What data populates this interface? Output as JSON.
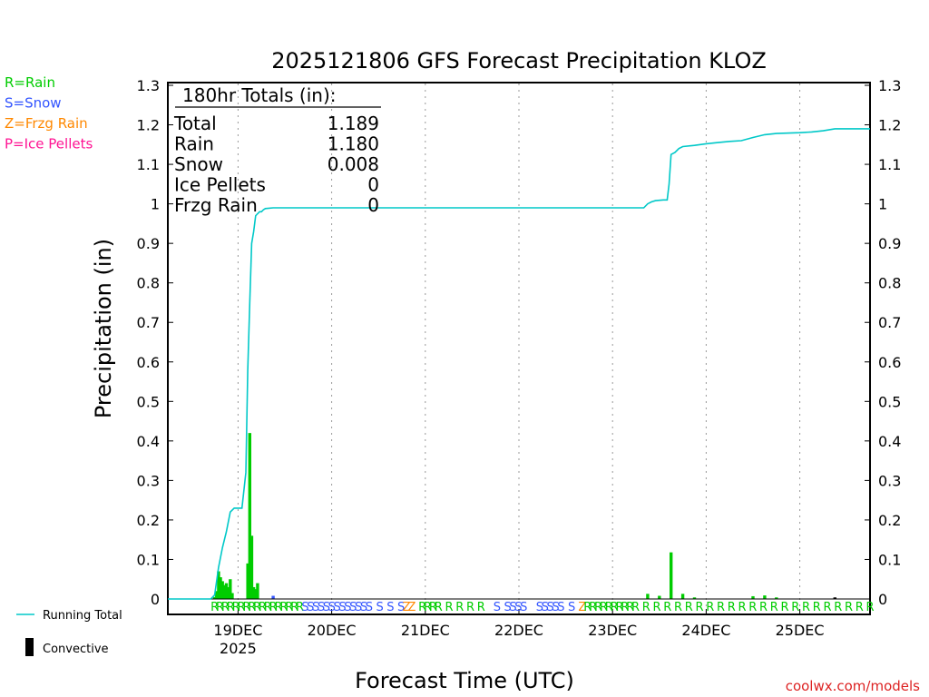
{
  "chart_data": {
    "type": "bar+line",
    "title": "2025121806 GFS Forecast Precipitation KLOZ",
    "ylabel": "Precipitation (in)",
    "xlabel": "Forecast Time (UTC)",
    "ylim": [
      0,
      1.3
    ],
    "yticks": [
      0,
      0.1,
      0.2,
      0.3,
      0.4,
      0.5,
      0.6,
      0.7,
      0.8,
      0.9,
      1,
      1.1,
      1.2,
      1.3
    ],
    "ytick_labels": [
      "0",
      "0.1",
      "0.2",
      "0.3",
      "0.4",
      "0.5",
      "0.6",
      "0.7",
      "0.8",
      "0.9",
      "1",
      "1.1",
      "1.2",
      "1.3"
    ],
    "xlim_hours": [
      0,
      180
    ],
    "days": [
      {
        "label": "19DEC",
        "hour": 18,
        "sublabel": "2025"
      },
      {
        "label": "20DEC",
        "hour": 42
      },
      {
        "label": "21DEC",
        "hour": 66
      },
      {
        "label": "22DEC",
        "hour": 90
      },
      {
        "label": "23DEC",
        "hour": 114
      },
      {
        "label": "24DEC",
        "hour": 138
      },
      {
        "label": "25DEC",
        "hour": 162
      }
    ],
    "legend_types": [
      {
        "code": "R",
        "text": "R=Rain",
        "color": "#00cc00"
      },
      {
        "code": "S",
        "text": "S=Snow",
        "color": "#3355ff"
      },
      {
        "code": "Z",
        "text": "Z=Frzg Rain",
        "color": "#ff8800"
      },
      {
        "code": "P",
        "text": "P=Ice Pellets",
        "color": "#ff1493"
      }
    ],
    "legend_series": {
      "running_total": "Running Total",
      "convective": "Convective"
    },
    "totals": {
      "header": "180hr Totals (in):",
      "rows": [
        {
          "label": "Total",
          "value": "1.189"
        },
        {
          "label": "Rain",
          "value": "1.180"
        },
        {
          "label": "Snow",
          "value": "0.008"
        },
        {
          "label": "Ice Pellets",
          "value": "0"
        },
        {
          "label": "Frzg Rain",
          "value": "0"
        }
      ]
    },
    "bars": [
      {
        "hour": 12.0,
        "value": 0.005,
        "color": "#00cc00"
      },
      {
        "hour": 12.5,
        "value": 0.02,
        "color": "#00cc00"
      },
      {
        "hour": 13.0,
        "value": 0.07,
        "color": "#00cc00"
      },
      {
        "hour": 13.5,
        "value": 0.055,
        "color": "#00cc00"
      },
      {
        "hour": 14.0,
        "value": 0.045,
        "color": "#00cc00"
      },
      {
        "hour": 14.5,
        "value": 0.035,
        "color": "#00cc00"
      },
      {
        "hour": 15.0,
        "value": 0.04,
        "color": "#00cc00"
      },
      {
        "hour": 15.5,
        "value": 0.03,
        "color": "#00cc00"
      },
      {
        "hour": 16.0,
        "value": 0.05,
        "color": "#00cc00"
      },
      {
        "hour": 16.5,
        "value": 0.015,
        "color": "#00cc00"
      },
      {
        "hour": 20.5,
        "value": 0.09,
        "color": "#00cc00"
      },
      {
        "hour": 21.0,
        "value": 0.42,
        "color": "#00cc00"
      },
      {
        "hour": 21.5,
        "value": 0.16,
        "color": "#00cc00"
      },
      {
        "hour": 22.0,
        "value": 0.03,
        "color": "#00cc00"
      },
      {
        "hour": 22.5,
        "value": 0.025,
        "color": "#00cc00"
      },
      {
        "hour": 23.0,
        "value": 0.04,
        "color": "#00cc00"
      },
      {
        "hour": 27.0,
        "value": 0.008,
        "color": "#3355ff"
      },
      {
        "hour": 123.0,
        "value": 0.013,
        "color": "#00cc00"
      },
      {
        "hour": 126.0,
        "value": 0.008,
        "color": "#00cc00"
      },
      {
        "hour": 129.0,
        "value": 0.118,
        "color": "#00cc00"
      },
      {
        "hour": 132.0,
        "value": 0.013,
        "color": "#00cc00"
      },
      {
        "hour": 135.0,
        "value": 0.004,
        "color": "#00cc00"
      },
      {
        "hour": 150.0,
        "value": 0.007,
        "color": "#00cc00"
      },
      {
        "hour": 153.0,
        "value": 0.009,
        "color": "#00cc00"
      },
      {
        "hour": 156.0,
        "value": 0.004,
        "color": "#00cc00"
      },
      {
        "hour": 171.0,
        "value": 0.004,
        "color": "#000000"
      }
    ],
    "running_total": {
      "hours": [
        0,
        11,
        12,
        13,
        14,
        15,
        16,
        17,
        18,
        19,
        20,
        20.5,
        21,
        21.5,
        22,
        22.5,
        23,
        23.5,
        24,
        24.5,
        25,
        27,
        42,
        114,
        120,
        122,
        123,
        124,
        125,
        126,
        127,
        128,
        128.5,
        129,
        130,
        131,
        132,
        135,
        138,
        141,
        144,
        147,
        150,
        153,
        156,
        162,
        165,
        168,
        171,
        180
      ],
      "values": [
        0,
        0,
        0.01,
        0.08,
        0.13,
        0.17,
        0.22,
        0.23,
        0.23,
        0.23,
        0.32,
        0.58,
        0.75,
        0.9,
        0.93,
        0.97,
        0.975,
        0.98,
        0.98,
        0.985,
        0.988,
        0.99,
        0.99,
        0.99,
        0.99,
        0.99,
        1.0,
        1.005,
        1.008,
        1.009,
        1.01,
        1.01,
        1.05,
        1.125,
        1.13,
        1.14,
        1.145,
        1.148,
        1.152,
        1.155,
        1.158,
        1.16,
        1.168,
        1.175,
        1.178,
        1.18,
        1.182,
        1.185,
        1.19,
        1.19
      ],
      "color": "#00c8c8"
    },
    "ptype_labels": "RRRRRRRRRRRRRRRRRSSSSSSSSSSSSS S S SZZ RRRR R R R R  S SSSS  SSSSS S ZRRRRRRRRRR R R R R R R R R R R R R R R R R R R R R R R"
  },
  "footer": {
    "credit": "coolwx.com/models"
  }
}
